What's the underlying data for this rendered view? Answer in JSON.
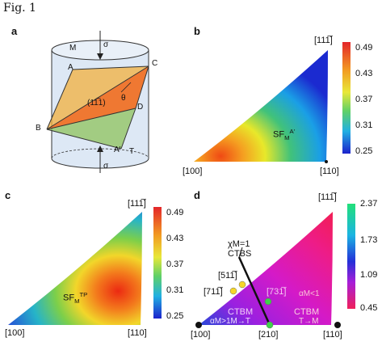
{
  "figure": {
    "title": "Fig. 1"
  },
  "panel_a": {
    "label": "a",
    "points": {
      "M": "M",
      "A": "A",
      "B": "B",
      "C": "C",
      "D": "D",
      "A_prime": "A'",
      "T": "T"
    },
    "sigma_top": "σ",
    "sigma_bottom": "σ",
    "plane_label": "(11̅1)",
    "theta": "θ"
  },
  "panel_b": {
    "label": "b",
    "corner_top": "[111̅]",
    "corner_bl": "[100]",
    "corner_br": "[110]",
    "sf_main": "SF",
    "sf_sub": "M",
    "sf_sup": "A'",
    "colorbar": {
      "ticks": [
        "0.49",
        "0.43",
        "0.37",
        "0.31",
        "0.25"
      ]
    }
  },
  "panel_c": {
    "label": "c",
    "corner_top": "[111̅]",
    "corner_bl": "[100]",
    "corner_br": "[110]",
    "sf_main": "SF",
    "sf_sub": "M",
    "sf_sup": "TP",
    "colorbar": {
      "ticks": [
        "0.49",
        "0.43",
        "0.37",
        "0.31",
        "0.25"
      ]
    }
  },
  "panel_d": {
    "label": "d",
    "corner_top": "[111̅]",
    "corner_bl": "[100]",
    "corner_bm": "[210]",
    "corner_br": "[110]",
    "chi_line1": "χM=1",
    "chi_line2": "CTBS",
    "label_511": "[511̅]",
    "label_711": "[711̅]",
    "label_731": "[731̅]",
    "alpha_M": "αM<1",
    "alpha_M_bottom": "αM>1M→T",
    "ctbm_left": "CTBM",
    "ctbm_right": "CTBM",
    "tm_label": "T→M",
    "colorbar": {
      "ticks": [
        "2.37",
        "1.73",
        "1.09",
        "0.45"
      ]
    }
  }
}
